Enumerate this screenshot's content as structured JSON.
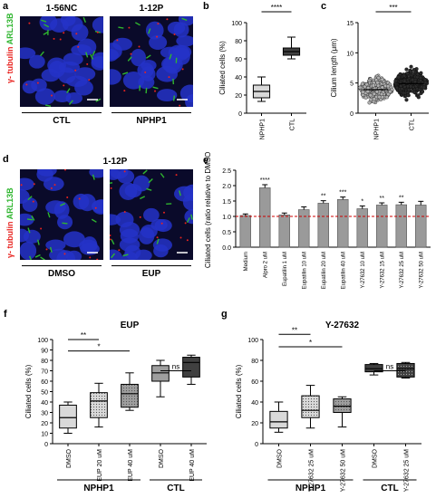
{
  "panel_a": {
    "letter": "a",
    "image_left_label": "1-56NC",
    "image_right_label": "1-12P",
    "stain_red": "γ- tubulin",
    "stain_green": "ARL13B",
    "condition_left": "CTL",
    "condition_right": "NPHP1"
  },
  "panel_d": {
    "letter": "d",
    "title": "1-12P",
    "stain_red": "γ- tubulin",
    "stain_green": "ARL13B",
    "condition_left": "DMSO",
    "condition_right": "EUP"
  },
  "colors": {
    "red_stain": "#e8231f",
    "green_stain": "#2fb52f",
    "nucleus": "#2433c8",
    "box_light": "#c8c8c8",
    "box_dark": "#4d4d4d",
    "bar_gray": "#9a9a9a",
    "dmso_line": "#cc0000"
  },
  "chart_data": [
    {
      "id": "b",
      "letter": "b",
      "type": "box",
      "ylabel": "Ciliated cells (%)",
      "ylim": [
        0,
        100
      ],
      "yticks": [
        0,
        20,
        40,
        60,
        80,
        100
      ],
      "categories": [
        "NPHP1",
        "CTL"
      ],
      "boxes": [
        {
          "label": "NPHP1",
          "min": 13,
          "q1": 17,
          "median": 24,
          "q3": 31,
          "max": 40,
          "fill": "light"
        },
        {
          "label": "CTL",
          "min": 60,
          "q1": 64,
          "median": 68,
          "q3": 72,
          "max": 84,
          "fill": "dark"
        }
      ],
      "significance": [
        {
          "from": 0,
          "to": 1,
          "label": "****"
        }
      ]
    },
    {
      "id": "c",
      "letter": "c",
      "type": "scatter",
      "ylabel": "Cilium length (μm)",
      "ylim": [
        0,
        15
      ],
      "yticks": [
        0,
        5,
        10,
        15
      ],
      "categories": [
        "NPHP1",
        "CTL"
      ],
      "groups": [
        {
          "label": "NPHP1",
          "mean": 3.9,
          "sd": 1.6,
          "min": 0.8,
          "max": 12.5,
          "n": 260,
          "fill": "#b0b0b0"
        },
        {
          "label": "CTL",
          "mean": 4.9,
          "sd": 1.8,
          "min": 1.0,
          "max": 12.0,
          "n": 300,
          "fill": "#2b2b2b"
        }
      ],
      "significance": [
        {
          "from": 0,
          "to": 1,
          "label": "***"
        }
      ]
    },
    {
      "id": "e",
      "letter": "e",
      "type": "bar",
      "ylabel": "Ciliated cells (ratio relative to DMSO)",
      "ylim": [
        0,
        2.5
      ],
      "yticks": [
        0,
        0.5,
        1.0,
        1.5,
        2.0,
        2.5
      ],
      "reference_line": 1.0,
      "categories": [
        "Medium",
        "Alpro 2 uM",
        "Eupatilin 1 uM",
        "Eupatilin 10 uM",
        "Eupatilin 20 uM",
        "Eupatilin 40 uM",
        "Y-27632 10 uM",
        "Y-27632 15 uM",
        "Y-27632 25 uM",
        "Y-27632 50 uM"
      ],
      "values": [
        1.03,
        1.93,
        1.05,
        1.22,
        1.43,
        1.55,
        1.25,
        1.37,
        1.38,
        1.37
      ],
      "errors": [
        0.05,
        0.1,
        0.06,
        0.09,
        0.08,
        0.08,
        0.09,
        0.07,
        0.08,
        0.12
      ],
      "significance": [
        "",
        "****",
        "",
        "",
        "**",
        "***",
        "*",
        "**",
        "**",
        ""
      ]
    },
    {
      "id": "f",
      "letter": "f",
      "type": "box",
      "title": "EUP",
      "ylabel": "Ciliated cells (%)",
      "ylim": [
        0,
        100
      ],
      "yticks": [
        0,
        10,
        20,
        30,
        40,
        50,
        60,
        70,
        80,
        90,
        100
      ],
      "categories": [
        "DMSO",
        "EUP 20 uM",
        "EUP 40 uM",
        "DMSO",
        "EUP 40 uM"
      ],
      "boxes": [
        {
          "label": "DMSO",
          "min": 10,
          "q1": 15,
          "median": 25,
          "q3": 37,
          "max": 40,
          "fill": "light"
        },
        {
          "label": "EUP 20 uM",
          "min": 16,
          "q1": 25,
          "median": 41,
          "q3": 49,
          "max": 58,
          "fill": "light-dots"
        },
        {
          "label": "EUP 40 uM",
          "min": 32,
          "q1": 35,
          "median": 48,
          "q3": 57,
          "max": 68,
          "fill": "mid-dots"
        },
        {
          "label": "DMSO",
          "min": 45,
          "q1": 60,
          "median": 68,
          "q3": 75,
          "max": 80,
          "fill": "mid"
        },
        {
          "label": "EUP 40 uM",
          "min": 57,
          "q1": 64,
          "median": 78,
          "q3": 83,
          "max": 85,
          "fill": "dark"
        }
      ],
      "significance": [
        {
          "from": 0,
          "to": 1,
          "label": "**"
        },
        {
          "from": 0,
          "to": 2,
          "label": "*"
        },
        {
          "from": 3,
          "to": 4,
          "label": "ns"
        }
      ],
      "groups": [
        {
          "label": "NPHP1",
          "from": 0,
          "to": 2
        },
        {
          "label": "CTL",
          "from": 3,
          "to": 4
        }
      ]
    },
    {
      "id": "g",
      "letter": "g",
      "type": "box",
      "title": "Y-27632",
      "ylabel": "Ciliated cells (%)",
      "ylim": [
        0,
        100
      ],
      "yticks": [
        0,
        20,
        40,
        60,
        80,
        100
      ],
      "categories": [
        "DMSO",
        "Y-27632 25 uM",
        "Y-27632 50 uM",
        "DMSO",
        "Y-27632 25 uM"
      ],
      "boxes": [
        {
          "label": "DMSO",
          "min": 11,
          "q1": 15,
          "median": 21,
          "q3": 31,
          "max": 40,
          "fill": "light"
        },
        {
          "label": "Y-27632 25 uM",
          "min": 15,
          "q1": 25,
          "median": 32,
          "q3": 46,
          "max": 56,
          "fill": "light-dots"
        },
        {
          "label": "Y-27632 50 uM",
          "min": 16,
          "q1": 30,
          "median": 36,
          "q3": 43,
          "max": 45,
          "fill": "mid-dots"
        },
        {
          "label": "DMSO",
          "min": 66,
          "q1": 69,
          "median": 72,
          "q3": 76,
          "max": 77,
          "fill": "dark"
        },
        {
          "label": "Y-27632 25 uM",
          "min": 63,
          "q1": 64,
          "median": 72,
          "q3": 77,
          "max": 78,
          "fill": "dark-dots"
        }
      ],
      "significance": [
        {
          "from": 0,
          "to": 1,
          "label": "**"
        },
        {
          "from": 0,
          "to": 2,
          "label": "*"
        },
        {
          "from": 3,
          "to": 4,
          "label": "ns"
        }
      ],
      "groups": [
        {
          "label": "NPHP1",
          "from": 0,
          "to": 2
        },
        {
          "label": "CTL",
          "from": 3,
          "to": 4
        }
      ]
    }
  ]
}
